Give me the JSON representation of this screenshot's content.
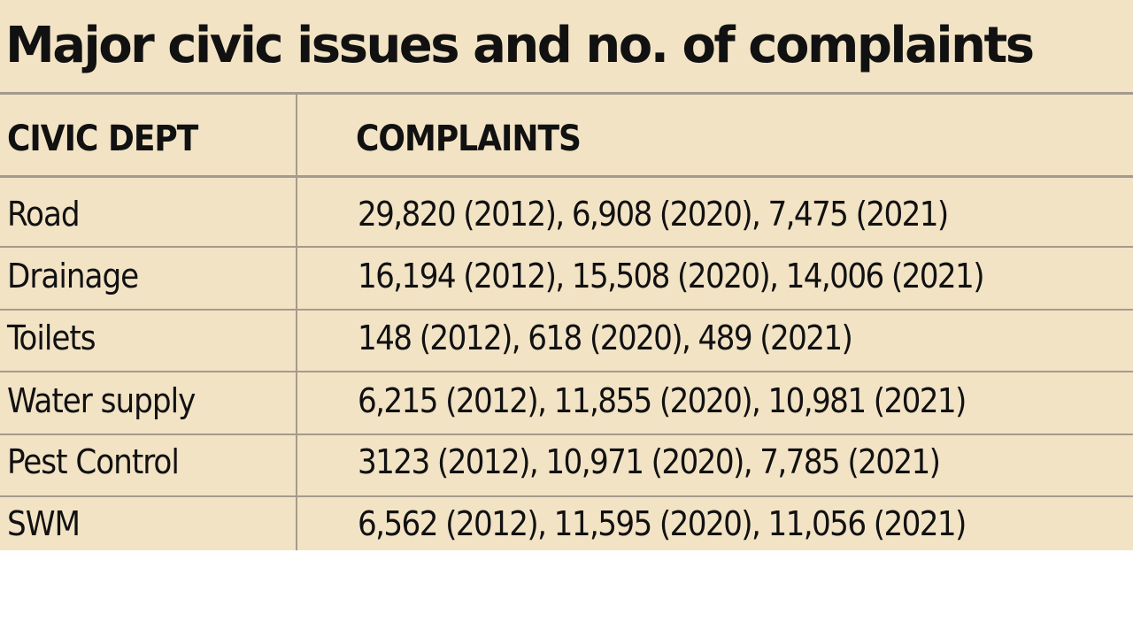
{
  "chart_data": {
    "type": "table",
    "title": "Major civic issues and no. of complaints",
    "columns": [
      "CIVIC DEPT",
      "COMPLAINTS"
    ],
    "rows": [
      {
        "dept": "Road",
        "complaints": "29,820 (2012), 6,908 (2020), 7,475 (2021)",
        "values": {
          "2012": 29820,
          "2020": 6908,
          "2021": 7475
        }
      },
      {
        "dept": "Drainage",
        "complaints": "16,194 (2012), 15,508 (2020), 14,006 (2021)",
        "values": {
          "2012": 16194,
          "2020": 15508,
          "2021": 14006
        }
      },
      {
        "dept": "Toilets",
        "complaints": "148 (2012), 618 (2020), 489 (2021)",
        "values": {
          "2012": 148,
          "2020": 618,
          "2021": 489
        }
      },
      {
        "dept": "Water supply",
        "complaints": "6,215 (2012), 11,855 (2020), 10,981 (2021)",
        "values": {
          "2012": 6215,
          "2020": 11855,
          "2021": 10981
        }
      },
      {
        "dept": "Pest Control",
        "complaints": "3123 (2012), 10,971 (2020), 7,785 (2021)",
        "values": {
          "2012": 3123,
          "2020": 10971,
          "2021": 7785
        }
      },
      {
        "dept": "SWM",
        "complaints": "6,562 (2012), 11,595 (2020), 11,056 (2021)",
        "values": {
          "2012": 6562,
          "2020": 11595,
          "2021": 11056
        }
      }
    ]
  },
  "colors": {
    "background": "#f2e3c5",
    "text": "#111111",
    "rule": "#a59b8c"
  }
}
